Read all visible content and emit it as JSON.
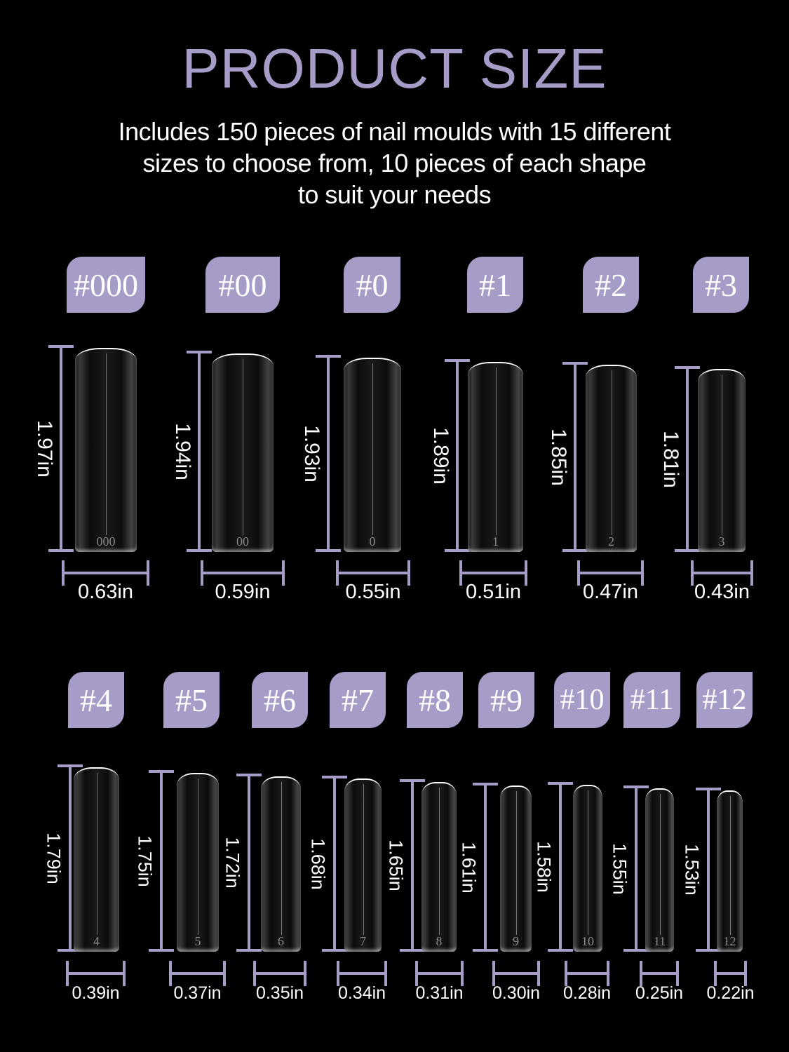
{
  "title": "PRODUCT SIZE",
  "subtitle_lines": [
    "Includes 150 pieces of nail moulds with 15 different",
    "sizes to choose from, 10 pieces of each shape",
    "to suit your needs"
  ],
  "accent_color": "#a79bc8",
  "sizes": [
    {
      "label": "#000",
      "mark": "000",
      "length": "1.97in",
      "width": "0.63in"
    },
    {
      "label": "#00",
      "mark": "00",
      "length": "1.94in",
      "width": "0.59in"
    },
    {
      "label": "#0",
      "mark": "0",
      "length": "1.93in",
      "width": "0.55in"
    },
    {
      "label": "#1",
      "mark": "1",
      "length": "1.89in",
      "width": "0.51in"
    },
    {
      "label": "#2",
      "mark": "2",
      "length": "1.85in",
      "width": "0.47in"
    },
    {
      "label": "#3",
      "mark": "3",
      "length": "1.81in",
      "width": "0.43in"
    },
    {
      "label": "#4",
      "mark": "4",
      "length": "1.79in",
      "width": "0.39in"
    },
    {
      "label": "#5",
      "mark": "5",
      "length": "1.75in",
      "width": "0.37in"
    },
    {
      "label": "#6",
      "mark": "6",
      "length": "1.72in",
      "width": "0.35in"
    },
    {
      "label": "#7",
      "mark": "7",
      "length": "1.68in",
      "width": "0.34in"
    },
    {
      "label": "#8",
      "mark": "8",
      "length": "1.65in",
      "width": "0.31in"
    },
    {
      "label": "#9",
      "mark": "9",
      "length": "1.61in",
      "width": "0.30in"
    },
    {
      "label": "#10",
      "mark": "10",
      "length": "1.58in",
      "width": "0.28in"
    },
    {
      "label": "#11",
      "mark": "11",
      "length": "1.55in",
      "width": "0.25in"
    },
    {
      "label": "#12",
      "mark": "12",
      "length": "1.53in",
      "width": "0.22in"
    }
  ]
}
